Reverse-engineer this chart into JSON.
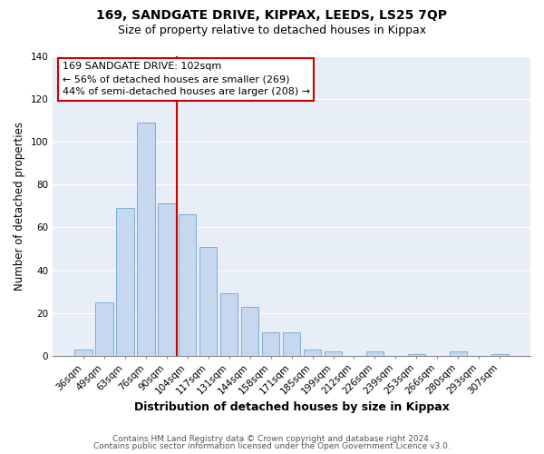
{
  "title": "169, SANDGATE DRIVE, KIPPAX, LEEDS, LS25 7QP",
  "subtitle": "Size of property relative to detached houses in Kippax",
  "xlabel": "Distribution of detached houses by size in Kippax",
  "ylabel": "Number of detached properties",
  "bar_labels": [
    "36sqm",
    "49sqm",
    "63sqm",
    "76sqm",
    "90sqm",
    "104sqm",
    "117sqm",
    "131sqm",
    "144sqm",
    "158sqm",
    "171sqm",
    "185sqm",
    "199sqm",
    "212sqm",
    "226sqm",
    "239sqm",
    "253sqm",
    "266sqm",
    "280sqm",
    "293sqm",
    "307sqm"
  ],
  "bar_values": [
    3,
    25,
    69,
    109,
    71,
    66,
    51,
    29,
    23,
    11,
    11,
    3,
    2,
    0,
    2,
    0,
    1,
    0,
    2,
    0,
    1
  ],
  "bar_color": "#c5d8f0",
  "bar_edge_color": "#7aadd4",
  "vline_color": "#cc0000",
  "annotation_text": "169 SANDGATE DRIVE: 102sqm\n← 56% of detached houses are smaller (269)\n44% of semi-detached houses are larger (208) →",
  "annotation_box_color": "#ffffff",
  "annotation_box_edge": "#cc0000",
  "ylim": [
    0,
    140
  ],
  "footer1": "Contains HM Land Registry data © Crown copyright and database right 2024.",
  "footer2": "Contains public sector information licensed under the Open Government Licence v3.0.",
  "bg_color": "#ffffff",
  "plot_bg_color": "#e8eef8",
  "grid_color": "#ffffff",
  "title_fontsize": 10,
  "subtitle_fontsize": 9,
  "tick_fontsize": 7.5,
  "ylabel_fontsize": 8.5,
  "xlabel_fontsize": 9,
  "annotation_fontsize": 8,
  "footer_fontsize": 6.5
}
